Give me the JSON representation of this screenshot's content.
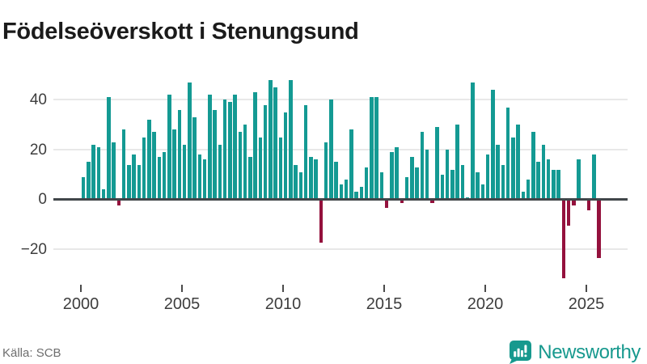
{
  "title": "Födelseöverskott i Stenungsund",
  "footer": {
    "source_label": "Källa: SCB",
    "brand_name": "Newsworthy",
    "brand_icon": "newsworthy-pin-barchart-icon"
  },
  "colors": {
    "positive_bar": "#149a93",
    "negative_bar": "#94113d",
    "axis_line": "#41464a",
    "gridline": "#e8e8e8",
    "tick": "#4b4b4b",
    "brand_teal": "#17998e",
    "title_text": "#1b1b1b",
    "axis_label_text": "#3d3d3d",
    "source_text": "#6e6e6e"
  },
  "chart_data": {
    "type": "bar",
    "title": "Födelseöverskott i Stenungsund",
    "xlabel": "",
    "ylabel": "",
    "resolution": "quarterly",
    "grid": "horizontal",
    "legend": "none",
    "ylim": [
      -33,
      52
    ],
    "y_ticks": [
      40,
      20,
      0,
      -20
    ],
    "y_tick_labels": [
      "40",
      "20",
      "0",
      "−20"
    ],
    "x_tick_labels": [
      "2000",
      "2005",
      "2010",
      "2015",
      "2020",
      "2025"
    ],
    "series": [
      {
        "year": 2000,
        "quarters": [
          9,
          15,
          22,
          21
        ]
      },
      {
        "year": 2001,
        "quarters": [
          4,
          41,
          23,
          -2
        ]
      },
      {
        "year": 2002,
        "quarters": [
          28,
          14,
          18,
          14
        ]
      },
      {
        "year": 2003,
        "quarters": [
          25,
          32,
          27,
          17
        ]
      },
      {
        "year": 2004,
        "quarters": [
          19,
          42,
          28,
          36
        ]
      },
      {
        "year": 2005,
        "quarters": [
          22,
          47,
          33,
          18
        ]
      },
      {
        "year": 2006,
        "quarters": [
          16,
          42,
          36,
          22
        ]
      },
      {
        "year": 2007,
        "quarters": [
          40,
          39,
          42,
          27
        ]
      },
      {
        "year": 2008,
        "quarters": [
          30,
          17,
          43,
          25
        ]
      },
      {
        "year": 2009,
        "quarters": [
          38,
          48,
          45,
          25
        ]
      },
      {
        "year": 2010,
        "quarters": [
          35,
          48,
          14,
          11
        ]
      },
      {
        "year": 2011,
        "quarters": [
          38,
          17,
          16,
          -17
        ]
      },
      {
        "year": 2012,
        "quarters": [
          23,
          40,
          15,
          6
        ]
      },
      {
        "year": 2013,
        "quarters": [
          8,
          28,
          3,
          5
        ]
      },
      {
        "year": 2014,
        "quarters": [
          13,
          41,
          41,
          11
        ]
      },
      {
        "year": 2015,
        "quarters": [
          -3,
          19,
          21,
          -1
        ]
      },
      {
        "year": 2016,
        "quarters": [
          9,
          17,
          13,
          27
        ]
      },
      {
        "year": 2017,
        "quarters": [
          20,
          -1,
          29,
          10
        ]
      },
      {
        "year": 2018,
        "quarters": [
          20,
          12,
          30,
          14
        ]
      },
      {
        "year": 2019,
        "quarters": [
          1,
          47,
          11,
          6
        ]
      },
      {
        "year": 2020,
        "quarters": [
          18,
          44,
          22,
          14
        ]
      },
      {
        "year": 2021,
        "quarters": [
          37,
          25,
          30,
          3
        ]
      },
      {
        "year": 2022,
        "quarters": [
          8,
          27,
          15,
          22
        ]
      },
      {
        "year": 2023,
        "quarters": [
          16,
          12,
          12,
          -31
        ]
      },
      {
        "year": 2024,
        "quarters": [
          -10,
          -2,
          16,
          0
        ]
      },
      {
        "year": 2025,
        "quarters": [
          -4,
          18,
          -23
        ]
      }
    ]
  }
}
